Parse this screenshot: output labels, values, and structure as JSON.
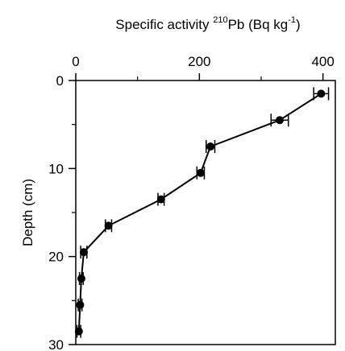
{
  "chart_data": {
    "type": "line",
    "xlabel_parts": {
      "pre": "Specific activity ",
      "sup1": "210",
      "mid": "Pb (Bq kg",
      "sup2": "-1",
      "post": ")"
    },
    "ylabel": "Depth (cm)",
    "xlim": [
      0,
      420
    ],
    "ylim": [
      0,
      30
    ],
    "y_inverted": true,
    "x_axis_position": "top",
    "xticks": [
      0,
      200,
      400
    ],
    "xticks_minor": [
      100,
      300
    ],
    "yticks": [
      0,
      10,
      20,
      30
    ],
    "yticks_minor": [
      5,
      15,
      25
    ],
    "grid": false,
    "marker": "circle",
    "line_color": "#000000",
    "series": [
      {
        "points": [
          {
            "x": 397,
            "y": 1.5,
            "xerr": 12
          },
          {
            "x": 330,
            "y": 4.5,
            "xerr": 14
          },
          {
            "x": 218,
            "y": 7.5,
            "xerr": 7
          },
          {
            "x": 202,
            "y": 10.5,
            "xerr": 6
          },
          {
            "x": 138,
            "y": 13.5,
            "xerr": 5
          },
          {
            "x": 53,
            "y": 16.5,
            "xerr": 5
          },
          {
            "x": 13,
            "y": 19.5,
            "xerr": 5
          },
          {
            "x": 9,
            "y": 22.5,
            "xerr": 3
          },
          {
            "x": 7,
            "y": 25.5,
            "xerr": 3
          },
          {
            "x": 5,
            "y": 28.5,
            "xerr": 3
          }
        ]
      }
    ]
  }
}
